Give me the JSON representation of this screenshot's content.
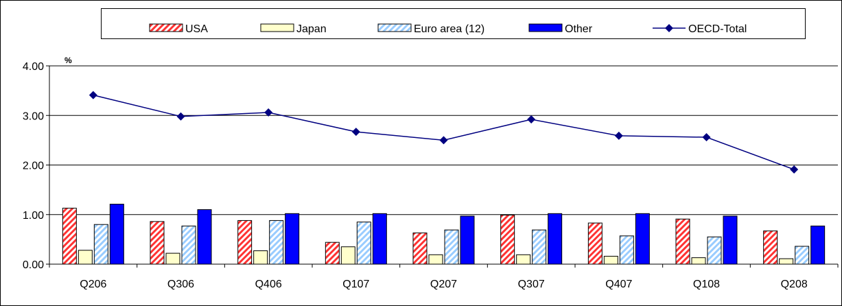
{
  "chart_data": {
    "type": "bar",
    "ylabel": "%",
    "ylim": [
      0,
      4
    ],
    "yticks": [
      "0.00",
      "1.00",
      "2.00",
      "3.00",
      "4.00"
    ],
    "grid": true,
    "legend_position": "top",
    "categories": [
      "Q206",
      "Q306",
      "Q406",
      "Q107",
      "Q207",
      "Q307",
      "Q407",
      "Q108",
      "Q208"
    ],
    "series": [
      {
        "name": "USA",
        "type": "bar",
        "pattern": "diagonal-hatch",
        "color": "#ff3333",
        "values": [
          1.13,
          0.86,
          0.88,
          0.44,
          0.63,
          0.99,
          0.83,
          0.91,
          0.67
        ]
      },
      {
        "name": "Japan",
        "type": "bar",
        "pattern": "solid",
        "color": "#ffffcc",
        "values": [
          0.28,
          0.22,
          0.27,
          0.35,
          0.19,
          0.19,
          0.16,
          0.13,
          0.11
        ]
      },
      {
        "name": "Euro area (12)",
        "type": "bar",
        "pattern": "diagonal-hatch",
        "color": "#99ccff",
        "values": [
          0.8,
          0.77,
          0.88,
          0.85,
          0.69,
          0.69,
          0.57,
          0.55,
          0.36
        ]
      },
      {
        "name": "Other",
        "type": "bar",
        "pattern": "solid",
        "color": "#0000ff",
        "values": [
          1.21,
          1.1,
          1.02,
          1.02,
          0.97,
          1.02,
          1.02,
          0.97,
          0.77
        ]
      },
      {
        "name": "OECD-Total",
        "type": "line",
        "marker": "diamond",
        "color": "#000080",
        "values": [
          3.41,
          2.98,
          3.06,
          2.67,
          2.5,
          2.92,
          2.59,
          2.56,
          1.91
        ]
      }
    ]
  }
}
